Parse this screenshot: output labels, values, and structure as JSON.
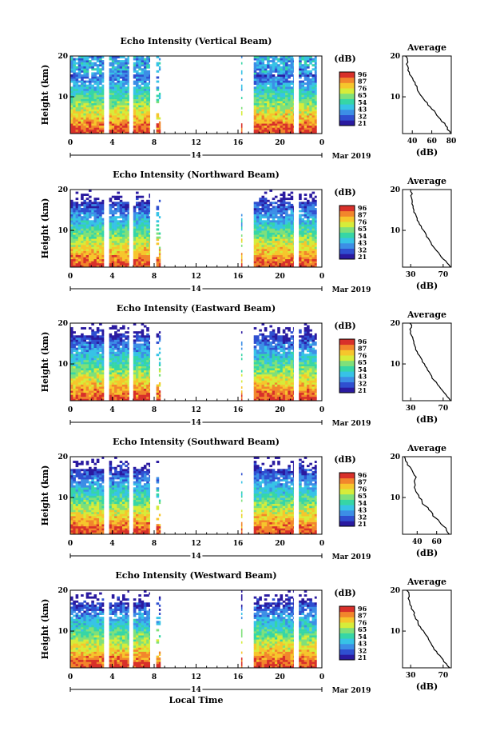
{
  "footer": {
    "xlabel": "Local Time",
    "date": "Mar 2019",
    "day": "14"
  },
  "avg_title": "Average",
  "colorbar": {
    "unit": "(dB)",
    "ticks": [
      "96",
      "87",
      "76",
      "65",
      "54",
      "43",
      "32",
      "21"
    ],
    "colors": [
      "#2a1aa0",
      "#2f4fd0",
      "#3c8ee6",
      "#37c3e6",
      "#36d6a6",
      "#7fe07a",
      "#d6ec3a",
      "#f6c62c",
      "#f2862c",
      "#d8302a"
    ]
  },
  "avg_xlabel": "(dB)",
  "chart_data": [
    {
      "type": "heatmap",
      "title": "Echo Intensity (Vertical Beam)",
      "ylabel": "Height (km)",
      "xlim": [
        0,
        24
      ],
      "ylim": [
        1,
        20
      ],
      "x_ticks": [
        "0",
        "4",
        "8",
        "12",
        "16",
        "20",
        "0"
      ],
      "y_ticks": [
        "20",
        "10"
      ],
      "profile": {
        "title": "Average",
        "xlabel": "(dB)",
        "x_ticks": [
          "40",
          "60",
          "80"
        ],
        "y_ticks": [
          "20",
          "10"
        ],
        "xlim": [
          30,
          80
        ],
        "x": [
          79,
          76,
          74,
          70,
          67,
          64,
          60,
          56,
          53,
          50,
          47,
          45,
          43,
          41,
          39,
          37,
          36,
          34,
          35,
          33
        ],
        "y": [
          1,
          2,
          3,
          4,
          5,
          6,
          7,
          8,
          9,
          10,
          11,
          12,
          13,
          14,
          15,
          16,
          17,
          18,
          19,
          20
        ]
      }
    },
    {
      "type": "heatmap",
      "title": "Echo Intensity (Northward Beam)",
      "ylabel": "Height (km)",
      "xlim": [
        0,
        24
      ],
      "ylim": [
        1,
        20
      ],
      "x_ticks": [
        "0",
        "4",
        "8",
        "12",
        "16",
        "20",
        "0"
      ],
      "y_ticks": [
        "20",
        "10"
      ],
      "profile": {
        "title": "Average",
        "xlabel": "(dB)",
        "x_ticks": [
          "30",
          "70"
        ],
        "y_ticks": [
          "20",
          "10"
        ],
        "xlim": [
          20,
          80
        ],
        "x": [
          79,
          75,
          70,
          66,
          62,
          58,
          55,
          52,
          49,
          46,
          43,
          40,
          38,
          36,
          34,
          33,
          32,
          31,
          32,
          30
        ],
        "y": [
          1,
          2,
          3,
          4,
          5,
          6,
          7,
          8,
          9,
          10,
          11,
          12,
          13,
          14,
          15,
          16,
          17,
          18,
          19,
          20
        ]
      }
    },
    {
      "type": "heatmap",
      "title": "Echo Intensity (Eastward Beam)",
      "ylabel": "Height (km)",
      "xlim": [
        0,
        24
      ],
      "ylim": [
        1,
        20
      ],
      "x_ticks": [
        "0",
        "4",
        "8",
        "12",
        "16",
        "20",
        "0"
      ],
      "y_ticks": [
        "20",
        "10"
      ],
      "profile": {
        "title": "Average",
        "xlabel": "(dB)",
        "x_ticks": [
          "30",
          "70"
        ],
        "y_ticks": [
          "20",
          "10"
        ],
        "xlim": [
          20,
          80
        ],
        "x": [
          79,
          75,
          71,
          67,
          63,
          59,
          56,
          53,
          50,
          47,
          44,
          41,
          38,
          36,
          34,
          33,
          31,
          30,
          31,
          29
        ],
        "y": [
          1,
          2,
          3,
          4,
          5,
          6,
          7,
          8,
          9,
          10,
          11,
          12,
          13,
          14,
          15,
          16,
          17,
          18,
          19,
          20
        ]
      }
    },
    {
      "type": "heatmap",
      "title": "Echo Intensity (Southward Beam)",
      "ylabel": "Height (km)",
      "xlim": [
        0,
        24
      ],
      "ylim": [
        1,
        20
      ],
      "x_ticks": [
        "0",
        "4",
        "8",
        "12",
        "16",
        "20",
        "0"
      ],
      "y_ticks": [
        "20",
        "10"
      ],
      "profile": {
        "title": "Average",
        "xlabel": "(dB)",
        "x_ticks": [
          "40",
          "60"
        ],
        "y_ticks": [
          "20",
          "10"
        ],
        "xlim": [
          25,
          75
        ],
        "x": [
          73,
          70,
          67,
          63,
          59,
          56,
          52,
          48,
          45,
          42,
          40,
          38,
          38,
          37,
          39,
          36,
          34,
          30,
          28,
          27
        ],
        "y": [
          1,
          2,
          3,
          4,
          5,
          6,
          7,
          8,
          9,
          10,
          11,
          12,
          13,
          14,
          15,
          16,
          17,
          18,
          19,
          20
        ]
      }
    },
    {
      "type": "heatmap",
      "title": "Echo Intensity (Westward Beam)",
      "ylabel": "Height (km)",
      "xlim": [
        0,
        24
      ],
      "ylim": [
        1,
        20
      ],
      "x_ticks": [
        "0",
        "4",
        "8",
        "12",
        "16",
        "20",
        "0"
      ],
      "y_ticks": [
        "20",
        "10"
      ],
      "profile": {
        "title": "Average",
        "xlabel": "(dB)",
        "x_ticks": [
          "30",
          "70"
        ],
        "y_ticks": [
          "20",
          "10"
        ],
        "xlim": [
          20,
          80
        ],
        "x": [
          78,
          74,
          70,
          66,
          62,
          58,
          55,
          52,
          49,
          46,
          42,
          39,
          36,
          34,
          33,
          31,
          29,
          27,
          28,
          25
        ],
        "y": [
          1,
          2,
          3,
          4,
          5,
          6,
          7,
          8,
          9,
          10,
          11,
          12,
          13,
          14,
          15,
          16,
          17,
          18,
          19,
          20
        ]
      }
    }
  ]
}
